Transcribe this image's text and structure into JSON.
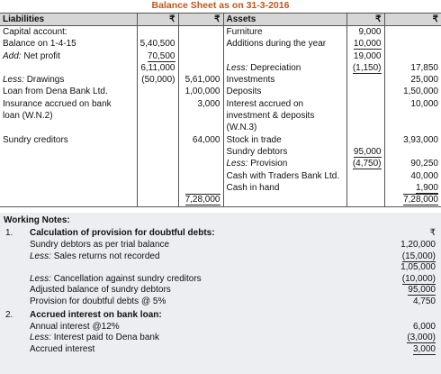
{
  "header": {
    "title": "Balance Sheet as on 31-3-2016"
  },
  "table": {
    "columns": [
      "Liabilities",
      "₹",
      "₹",
      "Assets",
      "₹",
      "₹"
    ],
    "rows": [
      [
        "Capital account:",
        null,
        null,
        "Furniture",
        "9,000",
        null
      ],
      [
        "Balance on 1-4-15",
        "5,40,500",
        null,
        "Additions during the year",
        "10,000",
        null
      ],
      [
        {
          "em": "Add:",
          "text": "Net profit"
        },
        "70,500",
        null,
        null,
        "19,000",
        null
      ],
      [
        null,
        "6,11,000",
        null,
        {
          "em": "Less:",
          "text": "Depreciation"
        },
        "(1,150)",
        "17,850"
      ],
      [
        {
          "em": "Less:",
          "text": "Drawings"
        },
        "(50,000)",
        "5,61,000",
        "Investments",
        null,
        "25,000"
      ],
      [
        "Loan from Dena Bank Ltd.",
        null,
        "1,00,000",
        "Deposits",
        null,
        "1,50,000"
      ],
      [
        "Insurance accrued on bank",
        null,
        "3,000",
        "Interest accrued on",
        null,
        "10,000"
      ],
      [
        "loan (W.N.2)",
        null,
        null,
        "investment & deposits",
        null,
        null
      ],
      [
        null,
        null,
        null,
        "(W.N.3)",
        null,
        null
      ],
      [
        "Sundry creditors",
        null,
        "64,000",
        "Stock in trade",
        null,
        "3,93,000"
      ],
      [
        null,
        null,
        null,
        "Sundry debtors",
        "95,000",
        null
      ],
      [
        null,
        null,
        null,
        {
          "em": "Less:",
          "text": "Provision"
        },
        "(4,750)",
        "90,250"
      ],
      [
        null,
        null,
        null,
        "Cash with Traders Bank Ltd.",
        null,
        "40,000"
      ],
      [
        null,
        null,
        null,
        "Cash in hand",
        null,
        "1,900"
      ],
      [
        null,
        null,
        "7,28,000",
        null,
        null,
        "7,28,000"
      ]
    ]
  },
  "working_notes": {
    "title": "Working Notes:",
    "notes": [
      {
        "number": "1.",
        "heading": "Calculation of provision for doubtful debts:",
        "currency": "₹",
        "lines": [
          [
            "Sundry debtors as per trial balance",
            "1,20,000"
          ],
          [
            {
              "em": "Less:",
              "text": "Sales returns not recorded"
            },
            "(15,000)"
          ],
          [
            null,
            "1,05,000"
          ],
          [
            {
              "em": "Less:",
              "text": "Cancellation against sundry creditors"
            },
            "(10,000)"
          ],
          [
            "Adjusted balance of sundry debtors",
            "95,000"
          ],
          [
            "Provision for doubtful debts @ 5%",
            "4,750"
          ]
        ]
      },
      {
        "number": "2.",
        "heading": "Accrued interest on bank loan:",
        "lines": [
          [
            "Annual interest @12%",
            "6,000"
          ],
          [
            {
              "em": "Less:",
              "text": "Interest paid to Dena bank"
            },
            "(3,000)"
          ],
          [
            "Accrued interest",
            "3,000"
          ]
        ]
      }
    ]
  }
}
